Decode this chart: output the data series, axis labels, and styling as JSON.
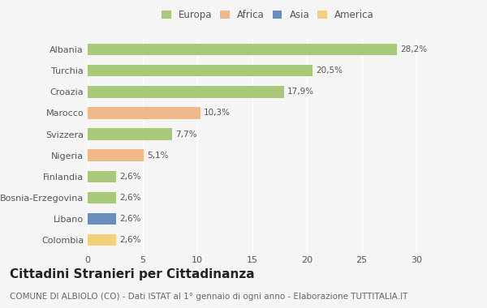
{
  "categories": [
    "Albania",
    "Turchia",
    "Croazia",
    "Marocco",
    "Svizzera",
    "Nigeria",
    "Finlandia",
    "Bosnia-Erzegovina",
    "Libano",
    "Colombia"
  ],
  "values": [
    28.2,
    20.5,
    17.9,
    10.3,
    7.7,
    5.1,
    2.6,
    2.6,
    2.6,
    2.6
  ],
  "labels": [
    "28,2%",
    "20,5%",
    "17,9%",
    "10,3%",
    "7,7%",
    "5,1%",
    "2,6%",
    "2,6%",
    "2,6%",
    "2,6%"
  ],
  "bar_colors": [
    "#a8c87a",
    "#a8c87a",
    "#a8c87a",
    "#f0b98a",
    "#a8c87a",
    "#f0b98a",
    "#a8c87a",
    "#a8c87a",
    "#6b8cbf",
    "#f5d07a"
  ],
  "legend_labels": [
    "Europa",
    "Africa",
    "Asia",
    "America"
  ],
  "legend_colors": [
    "#a8c87a",
    "#f0b98a",
    "#6b8cbf",
    "#f5d07a"
  ],
  "title": "Cittadini Stranieri per Cittadinanza",
  "subtitle": "COMUNE DI ALBIOLO (CO) - Dati ISTAT al 1° gennaio di ogni anno - Elaborazione TUTTITALIA.IT",
  "xlim": [
    0,
    32
  ],
  "xticks": [
    0,
    5,
    10,
    15,
    20,
    25,
    30
  ],
  "background_color": "#f5f5f5",
  "bar_height": 0.55,
  "title_fontsize": 11,
  "subtitle_fontsize": 7.5,
  "tick_fontsize": 8,
  "label_fontsize": 7.5,
  "legend_fontsize": 8.5
}
